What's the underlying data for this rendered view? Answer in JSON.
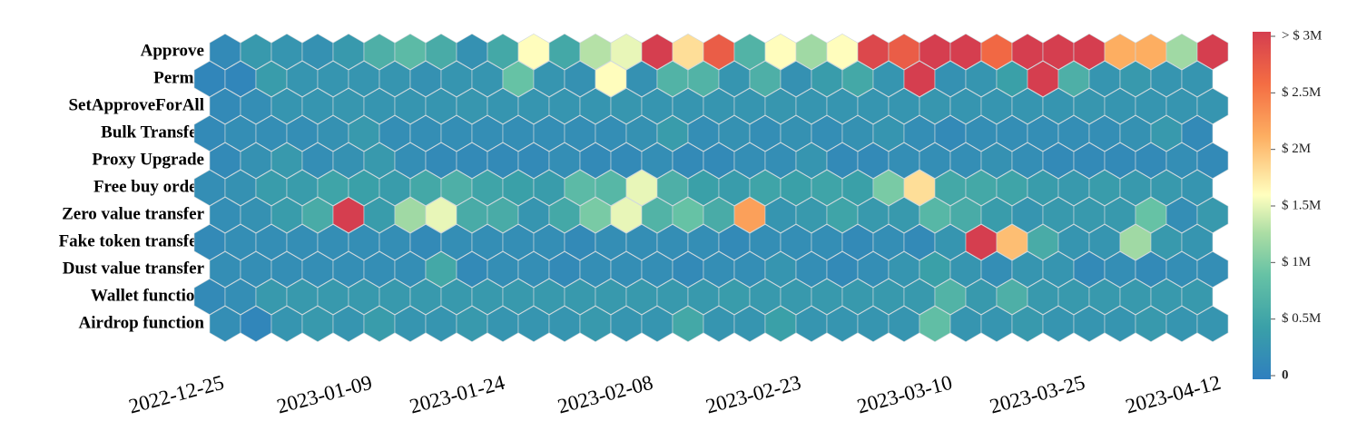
{
  "chart_data": {
    "type": "hexbin",
    "xlim": [
      0,
      32
    ],
    "xticks": [
      {
        "value": 0,
        "label": "2022-12-25"
      },
      {
        "value": 4.8,
        "label": "2023-01-09"
      },
      {
        "value": 9.1,
        "label": "2023-01-24"
      },
      {
        "value": 13.9,
        "label": "2023-02-08"
      },
      {
        "value": 18.7,
        "label": "2023-02-23"
      },
      {
        "value": 23.6,
        "label": "2023-03-10"
      },
      {
        "value": 27.9,
        "label": "2023-03-25"
      },
      {
        "value": 32.3,
        "label": "2023-04-12"
      }
    ],
    "colorbar": {
      "lim": [
        0,
        3000000
      ],
      "ticks": [
        0,
        {
          "value": 500000,
          "label": "$ 0.5M"
        },
        {
          "value": 1000000,
          "label": "$ 1M"
        },
        {
          "value": 1500000,
          "label": "$ 1.5M"
        },
        {
          "value": 2000000,
          "label": "$ 2M"
        },
        {
          "value": 2500000,
          "label": "$ 2.5M"
        },
        {
          "value": 3000000,
          "label": "> $ 3M"
        }
      ]
    },
    "series": [
      {
        "name": "Approve",
        "values": [
          150000,
          350000,
          300000,
          250000,
          350000,
          650000,
          800000,
          600000,
          250000,
          550000,
          1600000,
          550000,
          1300000,
          1500000,
          3000000,
          1800000,
          2700000,
          700000,
          1600000,
          1200000,
          1600000,
          2900000,
          2700000,
          3000000,
          3000000,
          2600000,
          3000000,
          3000000,
          3000000,
          2100000,
          2100000,
          1200000,
          3000000
        ]
      },
      {
        "name": "Permit",
        "values": [
          100000,
          100000,
          400000,
          300000,
          300000,
          300000,
          300000,
          250000,
          300000,
          300000,
          900000,
          300000,
          250000,
          1600000,
          250000,
          700000,
          700000,
          300000,
          650000,
          250000,
          400000,
          550000,
          300000,
          3000000,
          250000,
          300000,
          450000,
          3000000,
          650000,
          300000,
          350000,
          300000,
          300000
        ]
      },
      {
        "name": "SetApproveForAll",
        "values": [
          150000,
          200000,
          300000,
          300000,
          320000,
          300000,
          300000,
          300000,
          320000,
          300000,
          300000,
          300000,
          300000,
          320000,
          300000,
          300000,
          300000,
          300000,
          320000,
          300000,
          300000,
          300000,
          300000,
          320000,
          300000,
          300000,
          300000,
          300000,
          320000,
          300000,
          300000,
          300000,
          300000
        ]
      },
      {
        "name": "Bulk Transfer",
        "values": [
          150000,
          200000,
          200000,
          200000,
          250000,
          350000,
          200000,
          200000,
          200000,
          200000,
          200000,
          200000,
          200000,
          200000,
          250000,
          400000,
          200000,
          250000,
          200000,
          250000,
          200000,
          250000,
          300000,
          200000,
          150000,
          200000,
          200000,
          200000,
          200000,
          200000,
          250000,
          350000,
          150000
        ]
      },
      {
        "name": "Proxy Upgrade",
        "values": [
          150000,
          250000,
          350000,
          200000,
          250000,
          350000,
          200000,
          150000,
          150000,
          150000,
          150000,
          200000,
          150000,
          150000,
          200000,
          150000,
          150000,
          200000,
          200000,
          300000,
          150000,
          150000,
          200000,
          200000,
          200000,
          250000,
          200000,
          150000,
          150000,
          150000,
          150000,
          200000,
          150000
        ]
      },
      {
        "name": "Free buy order",
        "values": [
          200000,
          250000,
          400000,
          400000,
          500000,
          450000,
          400000,
          550000,
          650000,
          500000,
          450000,
          400000,
          800000,
          750000,
          1500000,
          650000,
          450000,
          400000,
          500000,
          450000,
          500000,
          450000,
          1000000,
          1800000,
          550000,
          550000,
          500000,
          400000,
          350000,
          400000,
          350000,
          350000,
          300000
        ]
      },
      {
        "name": "Zero value transfer",
        "values": [
          200000,
          250000,
          400000,
          600000,
          3000000,
          400000,
          1200000,
          1500000,
          600000,
          600000,
          300000,
          550000,
          1000000,
          1500000,
          700000,
          900000,
          600000,
          2200000,
          300000,
          350000,
          500000,
          350000,
          350000,
          750000,
          600000,
          400000,
          300000,
          350000,
          350000,
          350000,
          900000,
          200000,
          350000
        ]
      },
      {
        "name": "Fake token transfer",
        "values": [
          150000,
          200000,
          200000,
          200000,
          200000,
          200000,
          200000,
          150000,
          200000,
          200000,
          200000,
          200000,
          150000,
          200000,
          200000,
          200000,
          200000,
          150000,
          200000,
          200000,
          200000,
          150000,
          200000,
          150000,
          300000,
          3000000,
          2000000,
          600000,
          300000,
          300000,
          1200000,
          350000,
          300000
        ]
      },
      {
        "name": "Dust value transfer",
        "values": [
          200000,
          200000,
          200000,
          200000,
          200000,
          200000,
          200000,
          550000,
          150000,
          200000,
          200000,
          150000,
          200000,
          200000,
          200000,
          150000,
          200000,
          200000,
          300000,
          200000,
          150000,
          200000,
          300000,
          450000,
          300000,
          200000,
          300000,
          300000,
          150000,
          200000,
          150000,
          200000,
          200000
        ]
      },
      {
        "name": "Wallet function",
        "values": [
          150000,
          200000,
          350000,
          350000,
          350000,
          350000,
          350000,
          350000,
          350000,
          350000,
          350000,
          350000,
          350000,
          350000,
          350000,
          350000,
          350000,
          400000,
          350000,
          350000,
          350000,
          350000,
          350000,
          350000,
          700000,
          350000,
          650000,
          350000,
          350000,
          350000,
          350000,
          350000,
          350000
        ]
      },
      {
        "name": "Airdrop function",
        "values": [
          200000,
          100000,
          300000,
          350000,
          300000,
          400000,
          300000,
          300000,
          350000,
          300000,
          300000,
          300000,
          350000,
          300000,
          300000,
          550000,
          300000,
          300000,
          450000,
          300000,
          300000,
          300000,
          300000,
          850000,
          300000,
          300000,
          350000,
          300000,
          300000,
          300000,
          350000,
          300000,
          300000
        ]
      }
    ]
  }
}
